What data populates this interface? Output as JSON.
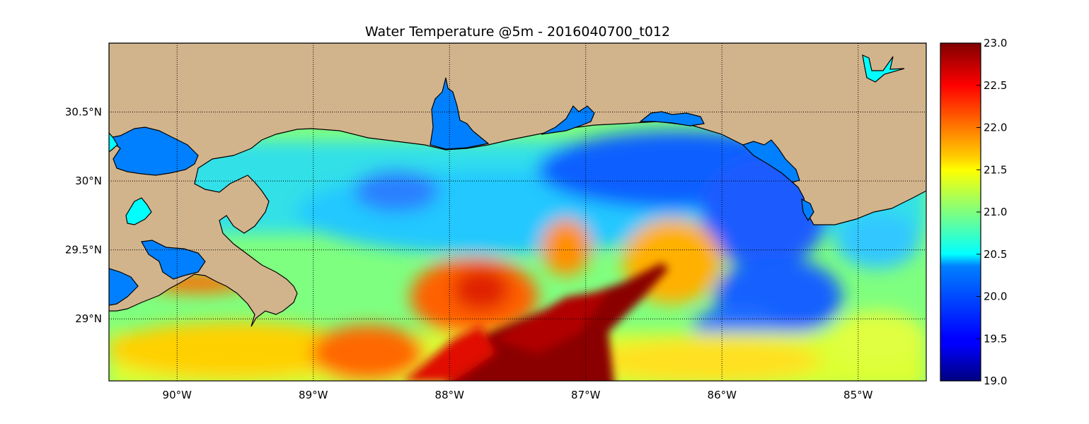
{
  "title": "Water Temperature @5m - 2016040700_t012",
  "map": {
    "lon_range": [
      -90.5,
      -84.5
    ],
    "lat_range": [
      28.55,
      31.0
    ],
    "lon_ticks": [
      -90,
      -89,
      -88,
      -87,
      -86,
      -85
    ],
    "lat_ticks": [
      29.0,
      29.5,
      30.0,
      30.5
    ],
    "lon_tick_labels": [
      "90°W",
      "89°W",
      "88°W",
      "87°W",
      "86°W",
      "85°W"
    ],
    "lat_tick_labels": [
      "29°N",
      "29.5°N",
      "30°N",
      "30.5°N"
    ],
    "grid": "dotted",
    "colors": {
      "land": "#d2b48c",
      "bay": "#0080ff",
      "lake": "#00ffff",
      "coast": "#000000"
    }
  },
  "colorbar": {
    "colormap": "jet",
    "range": [
      19.0,
      23.0
    ],
    "ticks": [
      "23.0",
      "22.5",
      "22.0",
      "21.5",
      "21.0",
      "20.5",
      "20.0",
      "19.5",
      "19.0"
    ]
  }
}
